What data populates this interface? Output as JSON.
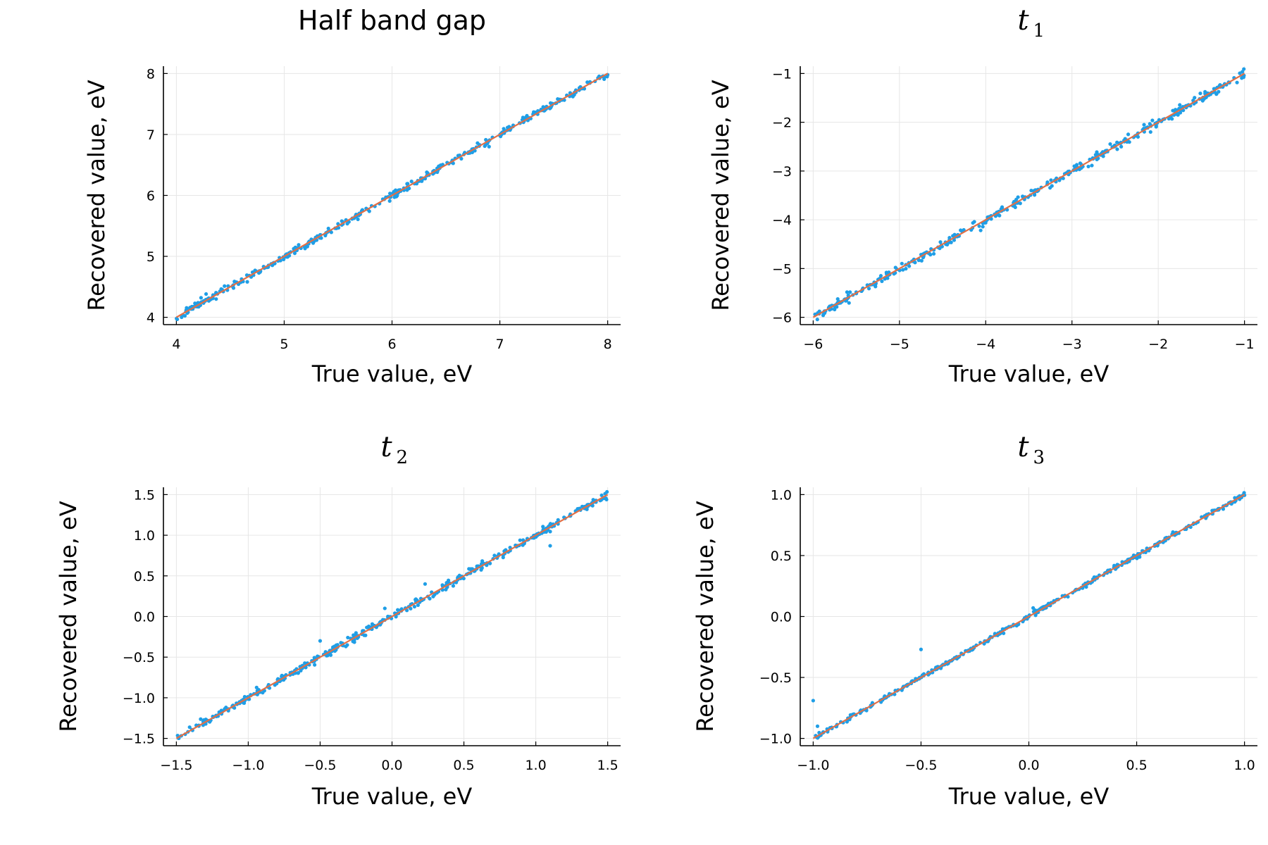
{
  "figure_title": "",
  "chart_data": [
    {
      "type": "scatter",
      "title": "Half band gap",
      "title_math": false,
      "xlabel": "True value, eV",
      "ylabel": "Recovered value, eV",
      "xlim": [
        3.88,
        8.12
      ],
      "ylim": [
        3.88,
        8.12
      ],
      "xticks": [
        4,
        5,
        6,
        7,
        8
      ],
      "yticks": [
        4,
        5,
        6,
        7,
        8
      ],
      "xtick_labels": [
        "4",
        "5",
        "6",
        "7",
        "8"
      ],
      "ytick_labels": [
        "4",
        "5",
        "6",
        "7",
        "8"
      ],
      "noise": 0.03,
      "seed": 11,
      "fit_line": [
        [
          4,
          4
        ],
        [
          8,
          8
        ]
      ],
      "outliers": [
        [
          6.9,
          6.8
        ]
      ],
      "series": [
        {
          "name": "recovered",
          "color": "#1f9ee6",
          "n_points": 380
        }
      ],
      "fit_color": "#e26f46"
    },
    {
      "type": "scatter",
      "title": "t",
      "title_sub": "1",
      "title_math": true,
      "xlabel": "True value, eV",
      "ylabel": "Recovered value, eV",
      "xlim": [
        -6.15,
        -0.85
      ],
      "ylim": [
        -6.15,
        -0.85
      ],
      "xticks": [
        -6,
        -5,
        -4,
        -3,
        -2,
        -1
      ],
      "yticks": [
        -6,
        -5,
        -4,
        -3,
        -2,
        -1
      ],
      "xtick_labels": [
        "−6",
        "−5",
        "−4",
        "−3",
        "−2",
        "−1"
      ],
      "ytick_labels": [
        "−6",
        "−5",
        "−4",
        "−3",
        "−2",
        "−1"
      ],
      "noise": 0.035,
      "seed": 23,
      "fit_line": [
        [
          -6,
          -6
        ],
        [
          -1,
          -1
        ]
      ],
      "outliers": [],
      "series": [
        {
          "name": "recovered",
          "color": "#1f9ee6",
          "n_points": 380
        }
      ],
      "fit_color": "#e26f46"
    },
    {
      "type": "scatter",
      "title": "t",
      "title_sub": "2",
      "title_math": true,
      "xlabel": "True value, eV",
      "ylabel": "Recovered value, eV",
      "xlim": [
        -1.59,
        1.59
      ],
      "ylim": [
        -1.59,
        1.59
      ],
      "xticks": [
        -1.5,
        -1.0,
        -0.5,
        0.0,
        0.5,
        1.0,
        1.5
      ],
      "yticks": [
        -1.5,
        -1.0,
        -0.5,
        0.0,
        0.5,
        1.0,
        1.5
      ],
      "xtick_labels": [
        "−1.5",
        "−1.0",
        "−0.5",
        "0.0",
        "0.5",
        "1.0",
        "1.5"
      ],
      "ytick_labels": [
        "−1.5",
        "−1.0",
        "−0.5",
        "0.0",
        "0.5",
        "1.0",
        "1.5"
      ],
      "noise": 0.03,
      "seed": 37,
      "fit_line": [
        [
          -1.5,
          -1.5
        ],
        [
          1.5,
          1.5
        ]
      ],
      "outliers": [
        [
          0.23,
          0.4
        ],
        [
          -0.5,
          -0.3
        ],
        [
          1.1,
          0.87
        ],
        [
          -0.05,
          0.1
        ],
        [
          0.6,
          0.62
        ]
      ],
      "series": [
        {
          "name": "recovered",
          "color": "#1f9ee6",
          "n_points": 400
        }
      ],
      "fit_color": "#e26f46"
    },
    {
      "type": "scatter",
      "title": "t",
      "title_sub": "3",
      "title_math": true,
      "xlabel": "True value, eV",
      "ylabel": "Recovered value, eV",
      "xlim": [
        -1.06,
        1.06
      ],
      "ylim": [
        -1.06,
        1.06
      ],
      "xticks": [
        -1.0,
        -0.5,
        0.0,
        0.5,
        1.0
      ],
      "yticks": [
        -1.0,
        -0.5,
        0.0,
        0.5,
        1.0
      ],
      "xtick_labels": [
        "−1.0",
        "−0.5",
        "0.0",
        "0.5",
        "1.0"
      ],
      "ytick_labels": [
        "−1.0",
        "−0.5",
        "0.0",
        "0.5",
        "1.0"
      ],
      "noise": 0.018,
      "seed": 53,
      "fit_line": [
        [
          -1,
          -1
        ],
        [
          1,
          1
        ]
      ],
      "outliers": [
        [
          -1.0,
          -0.69
        ],
        [
          -0.5,
          -0.27
        ],
        [
          0.02,
          0.07
        ],
        [
          -0.98,
          -0.9
        ]
      ],
      "series": [
        {
          "name": "recovered",
          "color": "#1f9ee6",
          "n_points": 400
        }
      ],
      "fit_color": "#e26f46"
    }
  ]
}
